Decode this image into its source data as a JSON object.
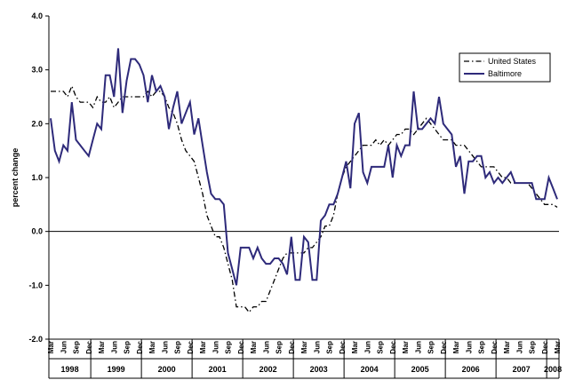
{
  "chart_data": {
    "type": "line",
    "y_label": "percent change",
    "categories": [
      "Mar",
      null,
      null,
      "Jun",
      null,
      null,
      "Sep",
      null,
      null,
      "Dec",
      null,
      null,
      "Mar",
      null,
      null,
      "Jun",
      null,
      null,
      "Sep",
      null,
      null,
      "Dec",
      null,
      null,
      "Mar",
      null,
      null,
      "Jun",
      null,
      null,
      "Sep",
      null,
      null,
      "Dec",
      null,
      null,
      "Mar",
      null,
      null,
      "Jun",
      null,
      null,
      "Sep",
      null,
      null,
      "Dec",
      null,
      null,
      "Mar",
      null,
      null,
      "Jun",
      null,
      null,
      "Sep",
      null,
      null,
      "Dec",
      null,
      null,
      "Mar",
      null,
      null,
      "Jun",
      null,
      null,
      "Sep",
      null,
      null,
      "Dec",
      null,
      null,
      "Mar",
      null,
      null,
      "Jun",
      null,
      null,
      "Sep",
      null,
      null,
      "Dec",
      null,
      null,
      "Mar",
      null,
      null,
      "Jun",
      null,
      null,
      "Sep",
      null,
      null,
      "Dec",
      null,
      null,
      "Mar",
      null,
      null,
      "Jun",
      null,
      null,
      "Sep",
      null,
      null,
      "Dec",
      null,
      null,
      "Mar",
      null,
      null,
      "Jun",
      null,
      null,
      "Sep",
      null,
      null,
      "Dec",
      null,
      null,
      "Mar"
    ],
    "years": [
      "1998",
      "1999",
      "2000",
      "2001",
      "2002",
      "2003",
      "2004",
      "2005",
      "2006",
      "2007",
      "2008"
    ],
    "series": [
      {
        "name": "United States",
        "color": "#000000",
        "dash": true,
        "values": [
          2.6,
          2.6,
          2.6,
          2.6,
          2.5,
          2.7,
          2.5,
          2.4,
          2.4,
          2.4,
          2.3,
          2.5,
          2.4,
          2.4,
          2.5,
          2.3,
          2.4,
          2.5,
          2.5,
          2.5,
          2.5,
          2.5,
          2.5,
          2.6,
          2.5,
          2.6,
          2.6,
          2.5,
          2.3,
          2.2,
          2.0,
          1.7,
          1.5,
          1.4,
          1.3,
          1.0,
          0.7,
          0.3,
          0.1,
          -0.1,
          -0.1,
          -0.3,
          -0.6,
          -0.9,
          -1.4,
          -1.4,
          -1.4,
          -1.5,
          -1.4,
          -1.4,
          -1.3,
          -1.3,
          -1.1,
          -0.9,
          -0.7,
          -0.5,
          -0.4,
          -0.4,
          -0.4,
          -0.4,
          -0.4,
          -0.3,
          -0.3,
          -0.2,
          -0.1,
          0.1,
          0.1,
          0.3,
          0.7,
          1.0,
          1.2,
          1.3,
          1.4,
          1.5,
          1.6,
          1.6,
          1.6,
          1.7,
          1.6,
          1.7,
          1.6,
          1.7,
          1.8,
          1.8,
          1.9,
          1.9,
          1.8,
          1.9,
          2.0,
          2.1,
          2.0,
          1.9,
          1.8,
          1.7,
          1.7,
          1.7,
          1.6,
          1.6,
          1.6,
          1.5,
          1.4,
          1.3,
          1.2,
          1.2,
          1.2,
          1.2,
          1.1,
          1.0,
          1.0,
          0.9,
          0.9,
          0.9,
          0.9,
          0.9,
          0.8,
          0.7,
          0.6,
          0.5,
          0.5,
          0.5,
          0.45
        ]
      },
      {
        "name": "Baltimore",
        "color": "#2e2a7a",
        "dash": false,
        "values": [
          2.1,
          1.5,
          1.3,
          1.6,
          1.5,
          2.4,
          1.7,
          1.6,
          1.5,
          1.4,
          1.7,
          2.0,
          1.9,
          2.9,
          2.9,
          2.5,
          3.4,
          2.2,
          2.8,
          3.2,
          3.2,
          3.1,
          2.9,
          2.4,
          2.9,
          2.6,
          2.7,
          2.5,
          1.9,
          2.3,
          2.6,
          2.0,
          2.2,
          2.4,
          1.8,
          2.1,
          1.6,
          1.1,
          0.7,
          0.6,
          0.6,
          0.5,
          -0.4,
          -0.7,
          -1.0,
          -0.3,
          -0.3,
          -0.3,
          -0.5,
          -0.3,
          -0.5,
          -0.6,
          -0.6,
          -0.5,
          -0.5,
          -0.6,
          -0.8,
          -0.1,
          -0.9,
          -0.9,
          -0.1,
          -0.2,
          -0.9,
          -0.9,
          0.2,
          0.3,
          0.5,
          0.5,
          0.7,
          1.0,
          1.3,
          0.8,
          2.0,
          2.2,
          1.1,
          0.9,
          1.2,
          1.2,
          1.2,
          1.2,
          1.6,
          1.0,
          1.6,
          1.4,
          1.6,
          1.6,
          2.6,
          1.9,
          1.9,
          2.0,
          2.1,
          2.0,
          2.5,
          2.0,
          1.9,
          1.8,
          1.2,
          1.4,
          0.7,
          1.3,
          1.3,
          1.4,
          1.4,
          1.0,
          1.1,
          0.9,
          1.0,
          0.9,
          1.0,
          1.1,
          0.9,
          0.9,
          0.9,
          0.9,
          0.9,
          0.6,
          0.6,
          0.6,
          1.0,
          0.8,
          0.6
        ]
      }
    ],
    "ylim": [
      -2,
      4
    ],
    "yticks": [
      {
        "value": -2,
        "label": "-2.0"
      },
      {
        "value": -1,
        "label": "-1.0"
      },
      {
        "value": 0,
        "label": "0.0"
      },
      {
        "value": 1,
        "label": "1.0"
      },
      {
        "value": 2,
        "label": "2.0"
      },
      {
        "value": 3,
        "label": "3.0"
      },
      {
        "value": 4,
        "label": "4.0"
      }
    ],
    "legend": "upper-right"
  }
}
